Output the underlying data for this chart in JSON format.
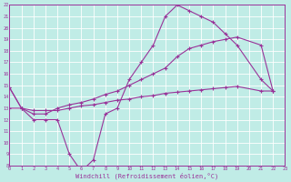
{
  "xlabel": "Windchill (Refroidissement éolien,°C)",
  "bg_color": "#c0ece6",
  "grid_color": "#ffffff",
  "line_color": "#993399",
  "xmin": 0,
  "xmax": 23,
  "ymin": 8,
  "ymax": 22,
  "line1_x": [
    0,
    1,
    2,
    3,
    4,
    5,
    6,
    7,
    8,
    9,
    10,
    11,
    12,
    13,
    14,
    15,
    16,
    17,
    18,
    19,
    21,
    22
  ],
  "line1_y": [
    14.8,
    13.0,
    12.0,
    12.0,
    12.0,
    9.0,
    7.5,
    8.5,
    12.5,
    13.0,
    15.5,
    17.0,
    18.5,
    21.0,
    22.0,
    21.5,
    21.0,
    20.5,
    19.5,
    18.5,
    15.5,
    14.5
  ],
  "line2_x": [
    0,
    1,
    2,
    3,
    4,
    5,
    6,
    7,
    8,
    9,
    10,
    11,
    12,
    13,
    14,
    15,
    16,
    17,
    18,
    19,
    21,
    22
  ],
  "line2_y": [
    14.8,
    13.0,
    12.5,
    12.5,
    13.0,
    13.3,
    13.5,
    13.8,
    14.2,
    14.5,
    15.0,
    15.5,
    16.0,
    16.5,
    17.5,
    18.2,
    18.5,
    18.8,
    19.0,
    19.2,
    18.5,
    14.5
  ],
  "line3_x": [
    0,
    1,
    2,
    3,
    4,
    5,
    6,
    7,
    8,
    9,
    10,
    11,
    12,
    13,
    14,
    15,
    16,
    17,
    18,
    19,
    21,
    22
  ],
  "line3_y": [
    13.0,
    13.0,
    12.8,
    12.8,
    12.8,
    13.0,
    13.2,
    13.3,
    13.5,
    13.7,
    13.8,
    14.0,
    14.1,
    14.3,
    14.4,
    14.5,
    14.6,
    14.7,
    14.8,
    14.9,
    14.5,
    14.5
  ],
  "xtick_labels": [
    "0",
    "1",
    "2",
    "3",
    "4",
    "5",
    "6",
    "7",
    "8",
    "9",
    "10",
    "11",
    "12",
    "13",
    "14",
    "15",
    "16",
    "17",
    "18",
    "19",
    "20",
    "21",
    "22",
    "23"
  ],
  "ytick_labels": [
    "8",
    "9",
    "10",
    "11",
    "12",
    "13",
    "14",
    "15",
    "16",
    "17",
    "18",
    "19",
    "20",
    "21",
    "22"
  ]
}
